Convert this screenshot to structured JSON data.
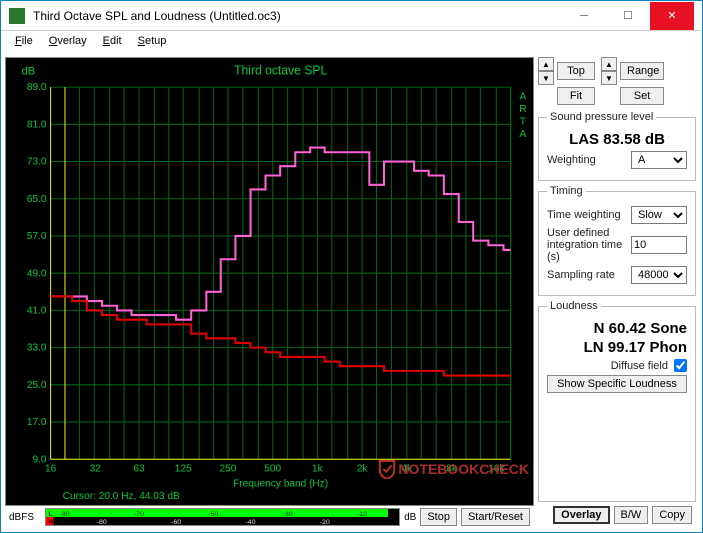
{
  "window": {
    "title": "Third Octave SPL and Loudness (Untitled.oc3)"
  },
  "menu": [
    "File",
    "Overlay",
    "Edit",
    "Setup"
  ],
  "chart": {
    "title": "Third octave SPL",
    "ylabel": "dB",
    "xlabel": "Frequency band (Hz)",
    "side_label": "ARTA",
    "background_color": "#000000",
    "grid_color": "#006619",
    "text_color": "#00c83c",
    "axis_color": "#f0f000",
    "ylim": [
      9,
      89
    ],
    "ytick_step": 8,
    "xticks": [
      16,
      32,
      63,
      125,
      250,
      500,
      "1k",
      "2k",
      "4k",
      "8k",
      "16k"
    ],
    "band_centers_hz": [
      20,
      25,
      31.5,
      40,
      50,
      63,
      80,
      100,
      125,
      160,
      200,
      250,
      315,
      400,
      500,
      630,
      800,
      1000,
      1250,
      1600,
      2000,
      2500,
      3150,
      4000,
      5000,
      6300,
      8000,
      10000,
      12500,
      16000,
      20000
    ],
    "series": [
      {
        "name": "overlay",
        "color": "#ff62d6",
        "line_width": 2,
        "values": [
          44,
          44,
          43,
          42,
          41,
          40,
          40,
          40,
          39,
          41,
          45,
          52,
          57,
          67,
          70,
          72,
          75,
          76,
          75,
          75,
          75,
          68,
          73,
          73,
          71,
          70,
          66,
          60,
          56,
          55,
          54
        ]
      },
      {
        "name": "current",
        "color": "#e00000",
        "line_width": 2,
        "values": [
          44,
          43,
          41,
          40,
          39,
          39,
          38,
          38,
          38,
          36,
          35,
          35,
          34,
          33,
          32,
          31,
          31,
          31,
          30,
          29,
          29,
          29,
          28,
          28,
          28,
          28,
          27,
          27,
          27,
          27,
          27
        ]
      }
    ],
    "cursor_text": "Cursor:  20.0 Hz, 44.03 dB"
  },
  "dbfs": {
    "label": "dBFS",
    "scale_ticks": [
      -90,
      -80,
      -70,
      -60,
      -50,
      -40,
      -30,
      -20,
      -10
    ],
    "channels": [
      {
        "name": "L",
        "color": "#00ff00",
        "level": -3
      },
      {
        "name": "R",
        "color": "#ff0000",
        "level": -93
      }
    ]
  },
  "controls": {
    "top_label": "Top",
    "fit_label": "Fit",
    "range_label": "Range",
    "set_label": "Set",
    "spl": {
      "legend": "Sound pressure level",
      "reading": "LAS 83.58 dB",
      "weighting_label": "Weighting",
      "weighting_value": "A"
    },
    "timing": {
      "legend": "Timing",
      "tw_label": "Time weighting",
      "tw_value": "Slow",
      "int_label": "User defined integration time (s)",
      "int_value": "10",
      "sr_label": "Sampling rate",
      "sr_value": "48000"
    },
    "loudness": {
      "legend": "Loudness",
      "n_line": "N 60.42 Sone",
      "ln_line": "LN 99.17 Phon",
      "diffuse_label": "Diffuse field",
      "diffuse_checked": true,
      "show_label": "Show Specific Loudness"
    }
  },
  "buttons": {
    "stop": "Stop",
    "start": "Start/Reset",
    "overlay": "Overlay",
    "bw": "B/W",
    "copy": "Copy"
  },
  "watermark": "NOTEBOOKCHECK"
}
